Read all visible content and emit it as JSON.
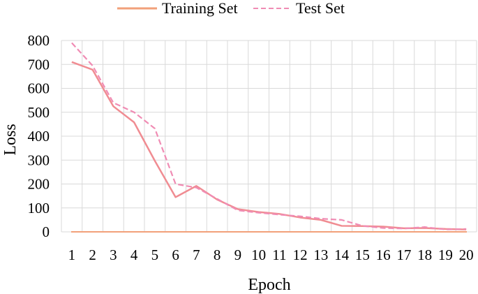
{
  "chart_data": {
    "type": "line",
    "title": "",
    "xlabel": "Epoch",
    "ylabel": "Loss",
    "x": [
      1,
      2,
      3,
      4,
      5,
      6,
      7,
      8,
      9,
      10,
      11,
      12,
      13,
      14,
      15,
      16,
      17,
      18,
      19,
      20
    ],
    "xticks": [
      "1",
      "2",
      "3",
      "4",
      "5",
      "6",
      "7",
      "8",
      "9",
      "10",
      "11",
      "12",
      "13",
      "14",
      "15",
      "16",
      "17",
      "18",
      "19",
      "20"
    ],
    "ylim": [
      0,
      800
    ],
    "yticks": [
      0,
      100,
      200,
      300,
      400,
      500,
      600,
      700,
      800
    ],
    "grid": "vertical and horizontal",
    "legend_position": "top",
    "series": [
      {
        "name": "Training Set",
        "style": "solid",
        "color": "#f08c92",
        "values": [
          710,
          678,
          525,
          458,
          297,
          145,
          192,
          135,
          95,
          83,
          75,
          60,
          50,
          25,
          24,
          22,
          15,
          16,
          12,
          10
        ]
      },
      {
        "name": "Test Set",
        "style": "dashed",
        "color": "#f08cb4",
        "values": [
          790,
          695,
          540,
          500,
          432,
          200,
          185,
          138,
          90,
          80,
          72,
          65,
          55,
          50,
          25,
          16,
          14,
          20,
          10,
          12
        ]
      }
    ],
    "legend_swatch_color": "#f2a07a",
    "baseline_color": "#f2a07a"
  }
}
